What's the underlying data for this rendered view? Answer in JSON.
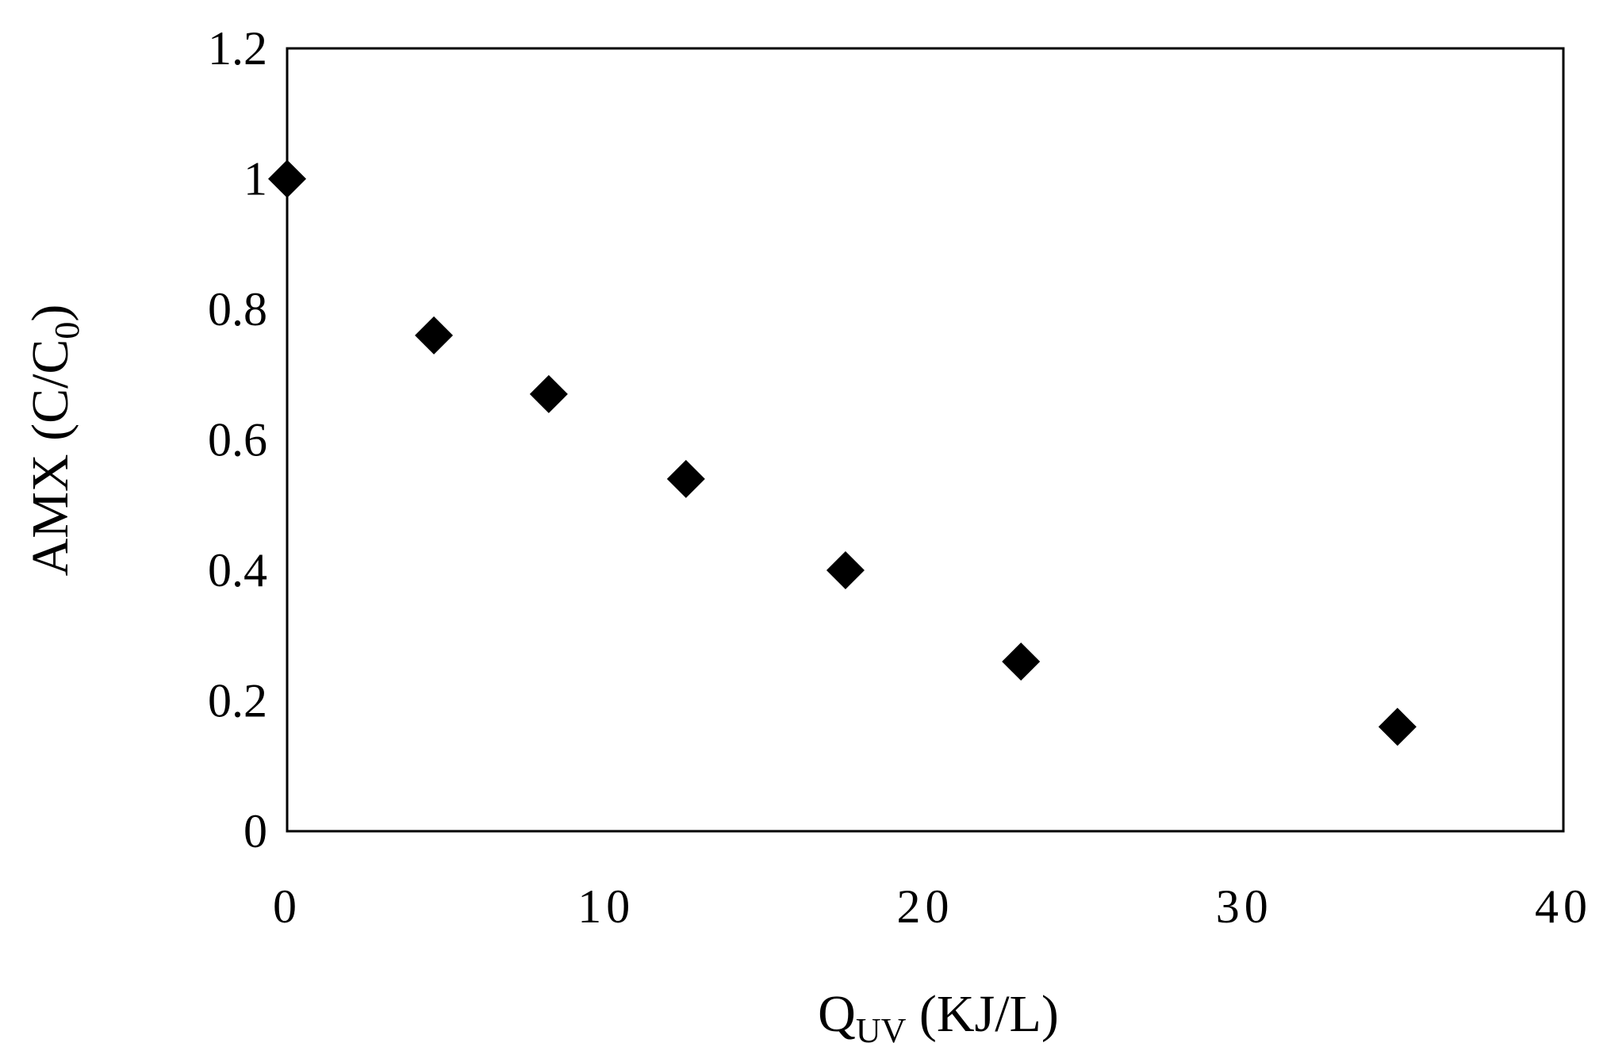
{
  "chart_data": {
    "type": "scatter",
    "xlabel": {
      "main": "Q",
      "sub": "UV",
      "rest": " (KJ/L)"
    },
    "ylabel": {
      "main": "AMX (C/C",
      "sub": "0",
      "rest": ")"
    },
    "xlim": [
      0,
      40
    ],
    "ylim": [
      0,
      1.2
    ],
    "x_ticks": [
      0,
      10,
      20,
      30,
      40
    ],
    "y_ticks": [
      0,
      0.2,
      0.4,
      0.6,
      0.8,
      1,
      1.2
    ],
    "x_tick_labels": [
      "0",
      "10",
      "20",
      "30",
      "40"
    ],
    "y_tick_labels": [
      "0",
      "0.2",
      "0.4",
      "0.6",
      "0.8",
      "1",
      "1.2"
    ],
    "grid": false,
    "marker": "diamond",
    "marker_color": "#000000",
    "points": [
      {
        "x": 0,
        "y": 1.0
      },
      {
        "x": 4.6,
        "y": 0.76
      },
      {
        "x": 8.2,
        "y": 0.67
      },
      {
        "x": 12.5,
        "y": 0.54
      },
      {
        "x": 17.5,
        "y": 0.4
      },
      {
        "x": 23.0,
        "y": 0.26
      },
      {
        "x": 34.8,
        "y": 0.16
      }
    ]
  }
}
